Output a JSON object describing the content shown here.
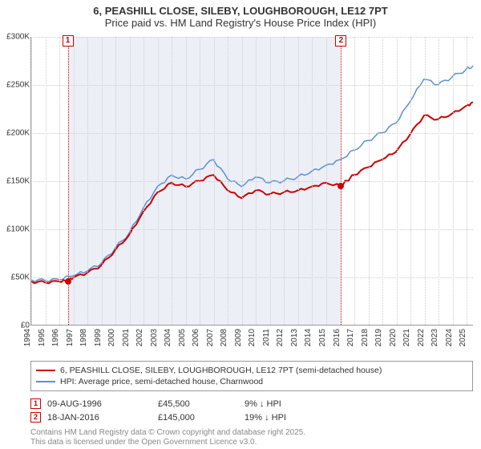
{
  "title_line1": "6, PEASHILL CLOSE, SILEBY, LOUGHBOROUGH, LE12 7PT",
  "title_line2": "Price paid vs. HM Land Registry's House Price Index (HPI)",
  "chart": {
    "type": "line",
    "background_color": "#ffffff",
    "grid_color": "#cccccc",
    "shade_color": "rgba(200,210,230,0.35)",
    "shade_xstart": 1996.6,
    "shade_xend": 2016.05,
    "ylim": [
      0,
      300000
    ],
    "ytick_step": 50000,
    "yticks": [
      "£0",
      "£50K",
      "£100K",
      "£150K",
      "£200K",
      "£250K",
      "£300K"
    ],
    "xlim": [
      1994,
      2025.5
    ],
    "xticks": [
      1994,
      1995,
      1996,
      1997,
      1998,
      1999,
      2000,
      2001,
      2002,
      2003,
      2004,
      2005,
      2006,
      2007,
      2008,
      2009,
      2010,
      2011,
      2012,
      2013,
      2014,
      2015,
      2016,
      2017,
      2018,
      2019,
      2020,
      2021,
      2022,
      2023,
      2024,
      2025
    ],
    "series": [
      {
        "name": "price_paid",
        "label": "6, PEASHILL CLOSE, SILEBY, LOUGHBOROUGH, LE12 7PT (semi-detached house)",
        "color": "#cc0000",
        "line_width": 2,
        "data": [
          [
            1994,
            45000
          ],
          [
            1995,
            44000
          ],
          [
            1996,
            45000
          ],
          [
            1996.6,
            45500
          ],
          [
            1997,
            49000
          ],
          [
            1998,
            54000
          ],
          [
            1999,
            62000
          ],
          [
            2000,
            78000
          ],
          [
            2001,
            94000
          ],
          [
            2002,
            118000
          ],
          [
            2003,
            138000
          ],
          [
            2004,
            148000
          ],
          [
            2005,
            144000
          ],
          [
            2006,
            150000
          ],
          [
            2007,
            156000
          ],
          [
            2008,
            140000
          ],
          [
            2009,
            132000
          ],
          [
            2010,
            140000
          ],
          [
            2011,
            136000
          ],
          [
            2012,
            138000
          ],
          [
            2013,
            140000
          ],
          [
            2014,
            144000
          ],
          [
            2015,
            148000
          ],
          [
            2016.05,
            145000
          ],
          [
            2016.5,
            150000
          ],
          [
            2017,
            156000
          ],
          [
            2018,
            164000
          ],
          [
            2019,
            172000
          ],
          [
            2020,
            180000
          ],
          [
            2021,
            198000
          ],
          [
            2022,
            218000
          ],
          [
            2023,
            214000
          ],
          [
            2024,
            220000
          ],
          [
            2025,
            228000
          ],
          [
            2025.5,
            232000
          ]
        ]
      },
      {
        "name": "hpi",
        "label": "HPI: Average price, semi-detached house, Charnwood",
        "color": "#5b8fd6",
        "line_width": 1.5,
        "data": [
          [
            1994,
            47000
          ],
          [
            1995,
            46000
          ],
          [
            1996,
            47000
          ],
          [
            1997,
            51000
          ],
          [
            1998,
            56000
          ],
          [
            1999,
            64000
          ],
          [
            2000,
            80000
          ],
          [
            2001,
            96000
          ],
          [
            2002,
            122000
          ],
          [
            2003,
            144000
          ],
          [
            2004,
            156000
          ],
          [
            2005,
            152000
          ],
          [
            2006,
            162000
          ],
          [
            2007,
            172000
          ],
          [
            2008,
            152000
          ],
          [
            2009,
            144000
          ],
          [
            2010,
            154000
          ],
          [
            2011,
            148000
          ],
          [
            2012,
            150000
          ],
          [
            2013,
            154000
          ],
          [
            2014,
            160000
          ],
          [
            2015,
            166000
          ],
          [
            2016,
            172000
          ],
          [
            2017,
            182000
          ],
          [
            2018,
            192000
          ],
          [
            2019,
            200000
          ],
          [
            2020,
            210000
          ],
          [
            2021,
            232000
          ],
          [
            2022,
            256000
          ],
          [
            2023,
            250000
          ],
          [
            2024,
            258000
          ],
          [
            2025,
            266000
          ],
          [
            2025.5,
            270000
          ]
        ]
      }
    ],
    "markers": [
      {
        "id": "1",
        "x": 1996.6,
        "y": 45500,
        "color": "#cc0000"
      },
      {
        "id": "2",
        "x": 2016.05,
        "y": 145000,
        "color": "#cc0000"
      }
    ]
  },
  "transactions": [
    {
      "id": "1",
      "date": "09-AUG-1996",
      "price": "£45,500",
      "delta": "9% ↓ HPI",
      "color": "#cc0000"
    },
    {
      "id": "2",
      "date": "18-JAN-2016",
      "price": "£145,000",
      "delta": "19% ↓ HPI",
      "color": "#cc0000"
    }
  ],
  "footnote_line1": "Contains HM Land Registry data © Crown copyright and database right 2025.",
  "footnote_line2": "This data is licensed under the Open Government Licence v3.0."
}
